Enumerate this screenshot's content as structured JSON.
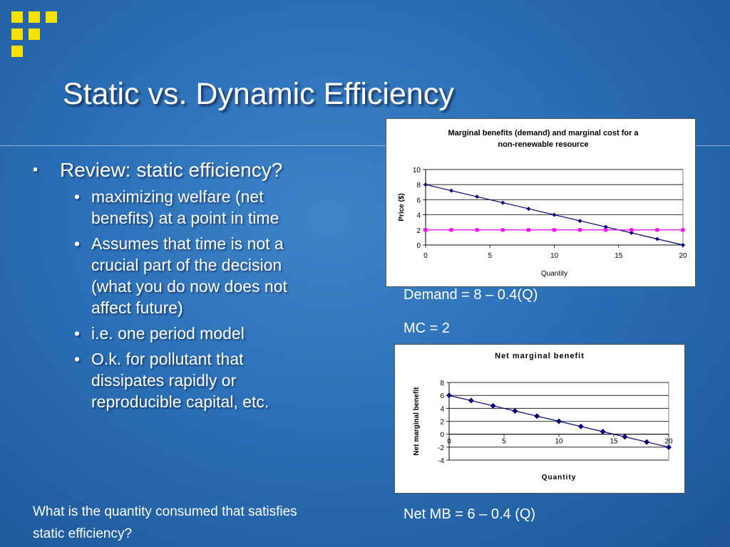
{
  "slide": {
    "title": "Static vs. Dynamic Efficiency",
    "bullet": "Review: static efficiency?",
    "subbullets": [
      "maximizing welfare (net benefits) at a point in time",
      "Assumes that time is not a crucial part of the decision (what you do now does not affect future)",
      "i.e. one period model",
      "O.k. for pollutant that dissipates rapidly or reproducible capital, etc."
    ],
    "note": "What is the quantity consumed that satisfies static efficiency?",
    "equations": {
      "demand": "Demand = 8 – 0.4(Q)",
      "mc": "MC = 2",
      "net_mb": "Net MB = 6 – 0.4 (Q)"
    },
    "colors": {
      "accent": "#f6e400",
      "demand_series": "#00007a",
      "mc_series": "#ff00ff"
    }
  },
  "chart_data": [
    {
      "type": "line",
      "title": "Marginal benefits (demand) and marginal cost for a non-renewable resource",
      "title_lines": [
        "Marginal benefits (demand) and marginal cost for a",
        "non-renewable resource"
      ],
      "xlabel": "Quantity",
      "ylabel": "Price ($)",
      "xlim": [
        0,
        20
      ],
      "ylim": [
        0,
        10
      ],
      "xticks": [
        0,
        5,
        10,
        15,
        20
      ],
      "yticks": [
        0,
        2,
        4,
        6,
        8,
        10
      ],
      "grid": true,
      "legend": "none",
      "series": [
        {
          "x": [
            0,
            2,
            4,
            6,
            8,
            10,
            12,
            14,
            16,
            18,
            20
          ],
          "values": [
            8,
            7.2,
            6.4,
            5.6,
            4.8,
            4,
            3.2,
            2.4,
            1.6,
            0.8,
            0
          ],
          "color": "#00007a",
          "marker": "diamond"
        },
        {
          "x": [
            0,
            2,
            4,
            6,
            8,
            10,
            12,
            14,
            16,
            18,
            20
          ],
          "values": [
            2,
            2,
            2,
            2,
            2,
            2,
            2,
            2,
            2,
            2,
            2
          ],
          "color": "#ff00ff",
          "marker": "square"
        }
      ]
    },
    {
      "type": "line",
      "title": "Net marginal benefit",
      "xlabel": "Quantity",
      "ylabel": "Net marginal benefit",
      "xlim": [
        0,
        20
      ],
      "ylim": [
        -4,
        8
      ],
      "xticks": [
        0,
        5,
        10,
        15,
        20
      ],
      "yticks": [
        -4,
        -2,
        0,
        2,
        4,
        6,
        8
      ],
      "grid": true,
      "legend": "none",
      "series": [
        {
          "x": [
            0,
            2,
            4,
            6,
            8,
            10,
            12,
            14,
            16,
            18,
            20
          ],
          "values": [
            6,
            5.2,
            4.4,
            3.6,
            2.8,
            2,
            1.2,
            0.4,
            -0.4,
            -1.2,
            -2
          ],
          "color": "#00007a",
          "marker": "diamond"
        }
      ]
    }
  ]
}
